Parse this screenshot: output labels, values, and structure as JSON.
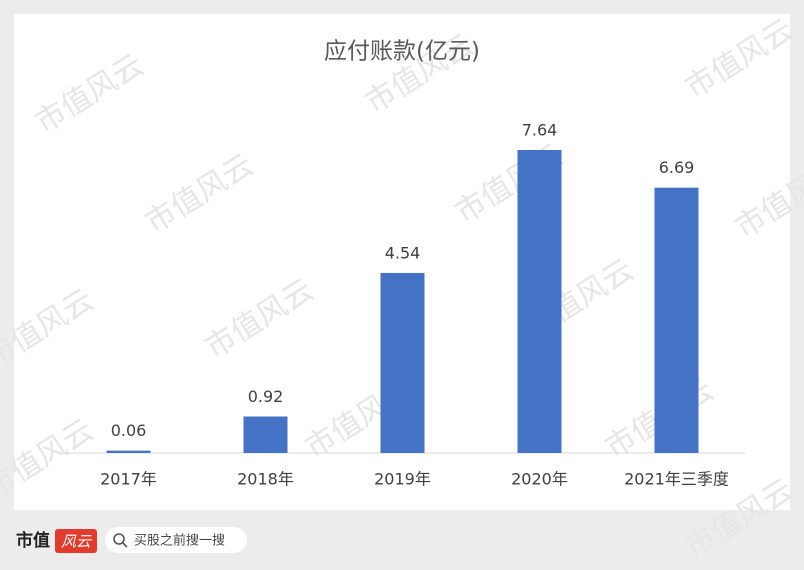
{
  "chart_data": {
    "type": "bar",
    "title": "应付账款(亿元)",
    "categories": [
      "2017年",
      "2018年",
      "2019年",
      "2020年",
      "2021年三季度"
    ],
    "values": [
      0.06,
      0.92,
      4.54,
      7.64,
      6.69
    ],
    "color": "#4472c4"
  },
  "watermark": "市值风云",
  "footer": {
    "brand": "市值",
    "logo": "风云",
    "search_placeholder": "买股之前搜一搜"
  }
}
